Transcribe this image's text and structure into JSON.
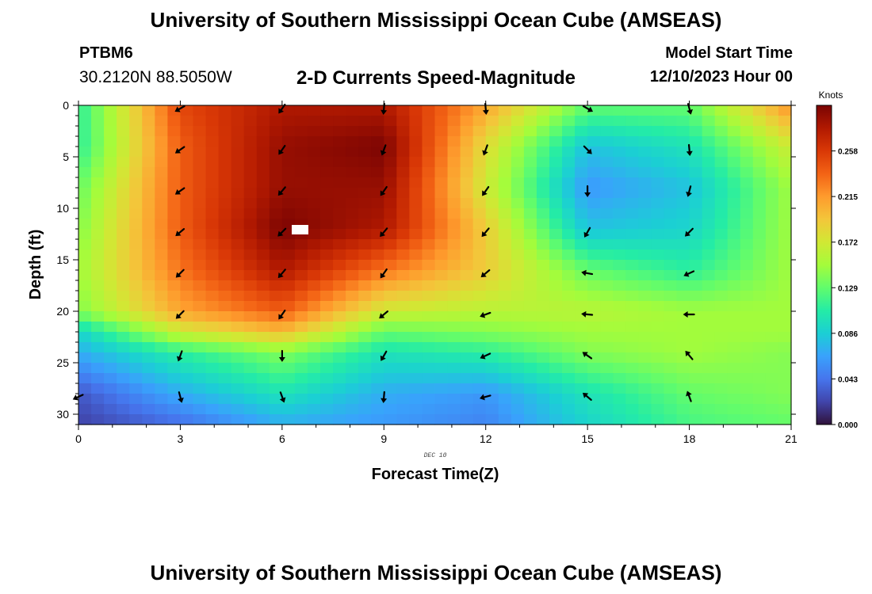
{
  "header": {
    "title": "University of Southern Mississippi Ocean Cube (AMSEAS)",
    "station_id": "PTBM6",
    "coordinates": "30.2120N  88.5050W",
    "chart_title": "2-D Currents Speed-Magnitude",
    "model_label": "Model Start Time",
    "model_start": "12/10/2023 Hour 00"
  },
  "footer": {
    "title": "University of Southern Mississippi Ocean Cube (AMSEAS)"
  },
  "chart_data": {
    "type": "heatmap",
    "title": "2-D Currents Speed-Magnitude",
    "xlabel": "Forecast Time(Z)",
    "ylabel": "Depth (ft)",
    "date_note": "DEC 10",
    "xlim": [
      0,
      21
    ],
    "ylim": [
      0,
      31
    ],
    "x_ticks": [
      "0",
      "3",
      "6",
      "9",
      "12",
      "15",
      "18",
      "21"
    ],
    "y_ticks": [
      "0",
      "5",
      "10",
      "15",
      "20",
      "25",
      "30"
    ],
    "colorbar": {
      "unit": "Knots",
      "range": [
        0.0,
        0.301
      ],
      "ticks": [
        "0.000",
        "0.043",
        "0.086",
        "0.129",
        "0.172",
        "0.215",
        "0.258"
      ]
    },
    "colormap": [
      "#30123b",
      "#4145ab",
      "#4675ed",
      "#39a2fc",
      "#1bcfd4",
      "#24eca6",
      "#61fc6c",
      "#a4fc3b",
      "#d1e834",
      "#f3c63a",
      "#fe9b2d",
      "#f36315",
      "#d93806",
      "#b11901",
      "#7a0403"
    ],
    "speed_grid": {
      "x": [
        0,
        3,
        6,
        9,
        12,
        15,
        18,
        21
      ],
      "depth": [
        0,
        4,
        8,
        12,
        16,
        20,
        22,
        24,
        28,
        31
      ],
      "values": [
        [
          0.11,
          0.25,
          0.28,
          0.28,
          0.21,
          0.13,
          0.13,
          0.22
        ],
        [
          0.11,
          0.24,
          0.29,
          0.3,
          0.18,
          0.08,
          0.1,
          0.17
        ],
        [
          0.13,
          0.24,
          0.29,
          0.29,
          0.17,
          0.06,
          0.08,
          0.15
        ],
        [
          0.14,
          0.24,
          0.3,
          0.28,
          0.19,
          0.08,
          0.09,
          0.15
        ],
        [
          0.15,
          0.23,
          0.28,
          0.23,
          0.19,
          0.13,
          0.11,
          0.15
        ],
        [
          0.14,
          0.21,
          0.24,
          0.17,
          0.16,
          0.16,
          0.15,
          0.15
        ],
        [
          0.09,
          0.17,
          0.2,
          0.13,
          0.14,
          0.15,
          0.15,
          0.15
        ],
        [
          0.07,
          0.11,
          0.14,
          0.1,
          0.11,
          0.14,
          0.15,
          0.14
        ],
        [
          0.03,
          0.07,
          0.1,
          0.07,
          0.06,
          0.1,
          0.13,
          0.14
        ],
        [
          0.02,
          0.04,
          0.07,
          0.06,
          0.05,
          0.09,
          0.12,
          0.13
        ]
      ]
    },
    "vectors": [
      {
        "t": 3,
        "depth": 0,
        "dir": 240
      },
      {
        "t": 6,
        "depth": 0,
        "dir": 215
      },
      {
        "t": 9,
        "depth": 0,
        "dir": 185
      },
      {
        "t": 12,
        "depth": 0,
        "dir": 175
      },
      {
        "t": 15,
        "depth": 0,
        "dir": 120
      },
      {
        "t": 18,
        "depth": 0,
        "dir": 165
      },
      {
        "t": 3,
        "depth": 4,
        "dir": 235
      },
      {
        "t": 6,
        "depth": 4,
        "dir": 215
      },
      {
        "t": 9,
        "depth": 4,
        "dir": 200
      },
      {
        "t": 12,
        "depth": 4,
        "dir": 200
      },
      {
        "t": 15,
        "depth": 4,
        "dir": 135
      },
      {
        "t": 18,
        "depth": 4,
        "dir": 175
      },
      {
        "t": 3,
        "depth": 8,
        "dir": 235
      },
      {
        "t": 6,
        "depth": 8,
        "dir": 220
      },
      {
        "t": 9,
        "depth": 8,
        "dir": 215
      },
      {
        "t": 12,
        "depth": 8,
        "dir": 215
      },
      {
        "t": 15,
        "depth": 8,
        "dir": 180
      },
      {
        "t": 18,
        "depth": 8,
        "dir": 195
      },
      {
        "t": 3,
        "depth": 12,
        "dir": 230
      },
      {
        "t": 6,
        "depth": 12,
        "dir": 225
      },
      {
        "t": 9,
        "depth": 12,
        "dir": 220
      },
      {
        "t": 12,
        "depth": 12,
        "dir": 220
      },
      {
        "t": 15,
        "depth": 12,
        "dir": 210
      },
      {
        "t": 18,
        "depth": 12,
        "dir": 225
      },
      {
        "t": 3,
        "depth": 16,
        "dir": 225
      },
      {
        "t": 6,
        "depth": 16,
        "dir": 220
      },
      {
        "t": 9,
        "depth": 16,
        "dir": 215
      },
      {
        "t": 12,
        "depth": 16,
        "dir": 230
      },
      {
        "t": 15,
        "depth": 16,
        "dir": 280
      },
      {
        "t": 18,
        "depth": 16,
        "dir": 245
      },
      {
        "t": 3,
        "depth": 20,
        "dir": 225
      },
      {
        "t": 6,
        "depth": 20,
        "dir": 215
      },
      {
        "t": 9,
        "depth": 20,
        "dir": 230
      },
      {
        "t": 12,
        "depth": 20,
        "dir": 250
      },
      {
        "t": 15,
        "depth": 20,
        "dir": 275
      },
      {
        "t": 18,
        "depth": 20,
        "dir": 270
      },
      {
        "t": 3,
        "depth": 24,
        "dir": 200
      },
      {
        "t": 6,
        "depth": 24,
        "dir": 180
      },
      {
        "t": 9,
        "depth": 24,
        "dir": 210
      },
      {
        "t": 12,
        "depth": 24,
        "dir": 245
      },
      {
        "t": 15,
        "depth": 24,
        "dir": 305
      },
      {
        "t": 18,
        "depth": 24,
        "dir": 320
      },
      {
        "t": 0,
        "depth": 28,
        "dir": 245
      },
      {
        "t": 3,
        "depth": 28,
        "dir": 165
      },
      {
        "t": 6,
        "depth": 28,
        "dir": 160
      },
      {
        "t": 9,
        "depth": 28,
        "dir": 185
      },
      {
        "t": 12,
        "depth": 28,
        "dir": 255
      },
      {
        "t": 15,
        "depth": 28,
        "dir": 310
      },
      {
        "t": 18,
        "depth": 28,
        "dir": 340
      }
    ]
  }
}
